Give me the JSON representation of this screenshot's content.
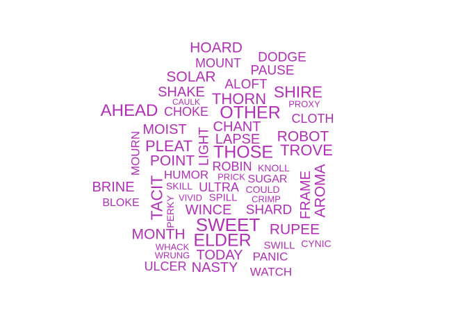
{
  "words": [
    {
      "text": "HOARD"
    },
    {
      "text": "DODGE"
    },
    {
      "text": "MOUNT"
    },
    {
      "text": "PAUSE"
    },
    {
      "text": "SOLAR"
    },
    {
      "text": "ALOFT"
    },
    {
      "text": "SHAKE"
    },
    {
      "text": "THORN"
    },
    {
      "text": "SHIRE"
    },
    {
      "text": "CAULK"
    },
    {
      "text": "PROXY"
    },
    {
      "text": "AHEAD"
    },
    {
      "text": "CHOKE"
    },
    {
      "text": "OTHER"
    },
    {
      "text": "CLOTH"
    },
    {
      "text": "CHANT"
    },
    {
      "text": "MOIST"
    },
    {
      "text": "LAPSE"
    },
    {
      "text": "ROBOT"
    },
    {
      "text": "PLEAT"
    },
    {
      "text": "LIGHT"
    },
    {
      "text": "THOSE"
    },
    {
      "text": "TROVE"
    },
    {
      "text": "MOURN"
    },
    {
      "text": "POINT"
    },
    {
      "text": "ROBIN"
    },
    {
      "text": "KNOLL"
    },
    {
      "text": "AROMA"
    },
    {
      "text": "HUMOR"
    },
    {
      "text": "PRICK"
    },
    {
      "text": "SUGAR"
    },
    {
      "text": "FRAME"
    },
    {
      "text": "BRINE"
    },
    {
      "text": "SKILL"
    },
    {
      "text": "ULTRA"
    },
    {
      "text": "COULD"
    },
    {
      "text": "TACIT"
    },
    {
      "text": "VIVID"
    },
    {
      "text": "SPILL"
    },
    {
      "text": "CRIMP"
    },
    {
      "text": "BLOKE"
    },
    {
      "text": "PERKY"
    },
    {
      "text": "WINCE"
    },
    {
      "text": "SHARD"
    },
    {
      "text": "SWEET"
    },
    {
      "text": "MONTH"
    },
    {
      "text": "RUPEE"
    },
    {
      "text": "ELDER"
    },
    {
      "text": "CYNIC"
    },
    {
      "text": "WHACK"
    },
    {
      "text": "SWILL"
    },
    {
      "text": "WRUNG"
    },
    {
      "text": "TODAY"
    },
    {
      "text": "PANIC"
    },
    {
      "text": "ULCER"
    },
    {
      "text": "NASTY"
    },
    {
      "text": "WATCH"
    }
  ]
}
